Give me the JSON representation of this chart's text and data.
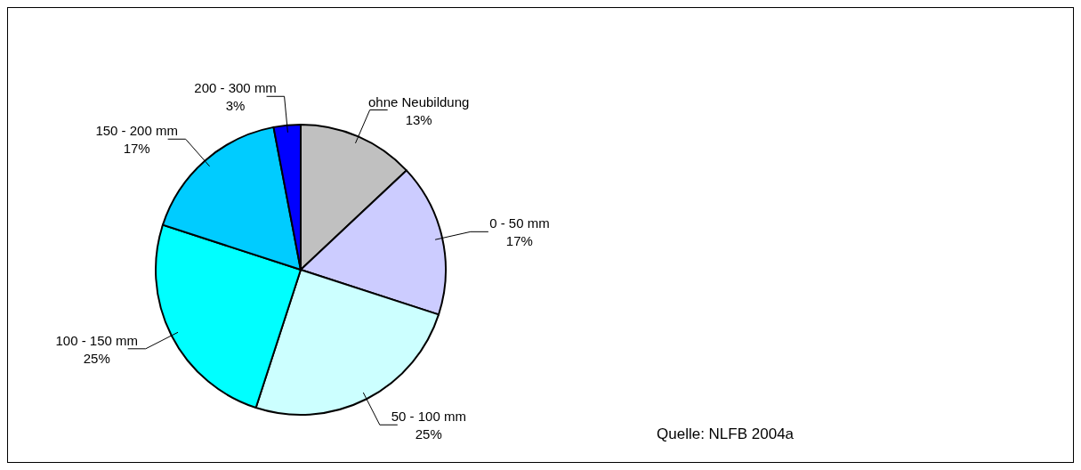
{
  "chart_data": {
    "type": "pie",
    "categories": [
      "ohne Neubildung",
      "0 - 50 mm",
      "50 - 100 mm",
      "100 - 150 mm",
      "150 - 200 mm",
      "200 - 300 mm"
    ],
    "values": [
      13,
      17,
      25,
      25,
      17,
      3
    ],
    "colors": [
      "#c0c0c0",
      "#ccccff",
      "#ccffff",
      "#00ffff",
      "#00ccff",
      "#0000ff"
    ],
    "value_labels": [
      "13%",
      "17%",
      "25%",
      "25%",
      "17%",
      "3%"
    ],
    "annotations": [
      "Quelle: NLFB 2004a"
    ],
    "legend": false
  }
}
